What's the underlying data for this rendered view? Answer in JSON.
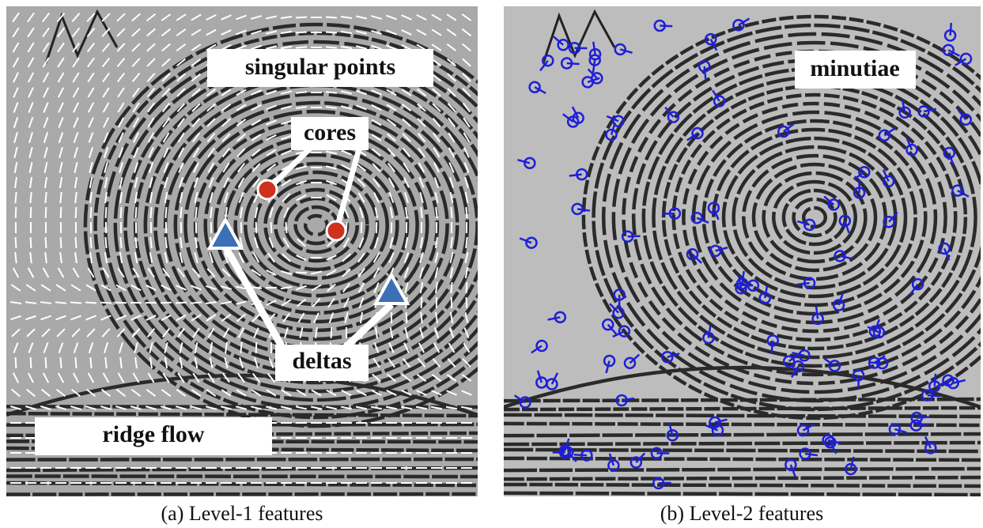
{
  "panels": [
    {
      "caption": "(a) Level-1 features",
      "labels": {
        "singular_points": "singular points",
        "cores": "cores",
        "deltas": "deltas",
        "ridge_flow": "ridge flow"
      }
    },
    {
      "caption": "(b) Level-2 features",
      "labels": {
        "minutiae": "minutiae"
      }
    }
  ]
}
